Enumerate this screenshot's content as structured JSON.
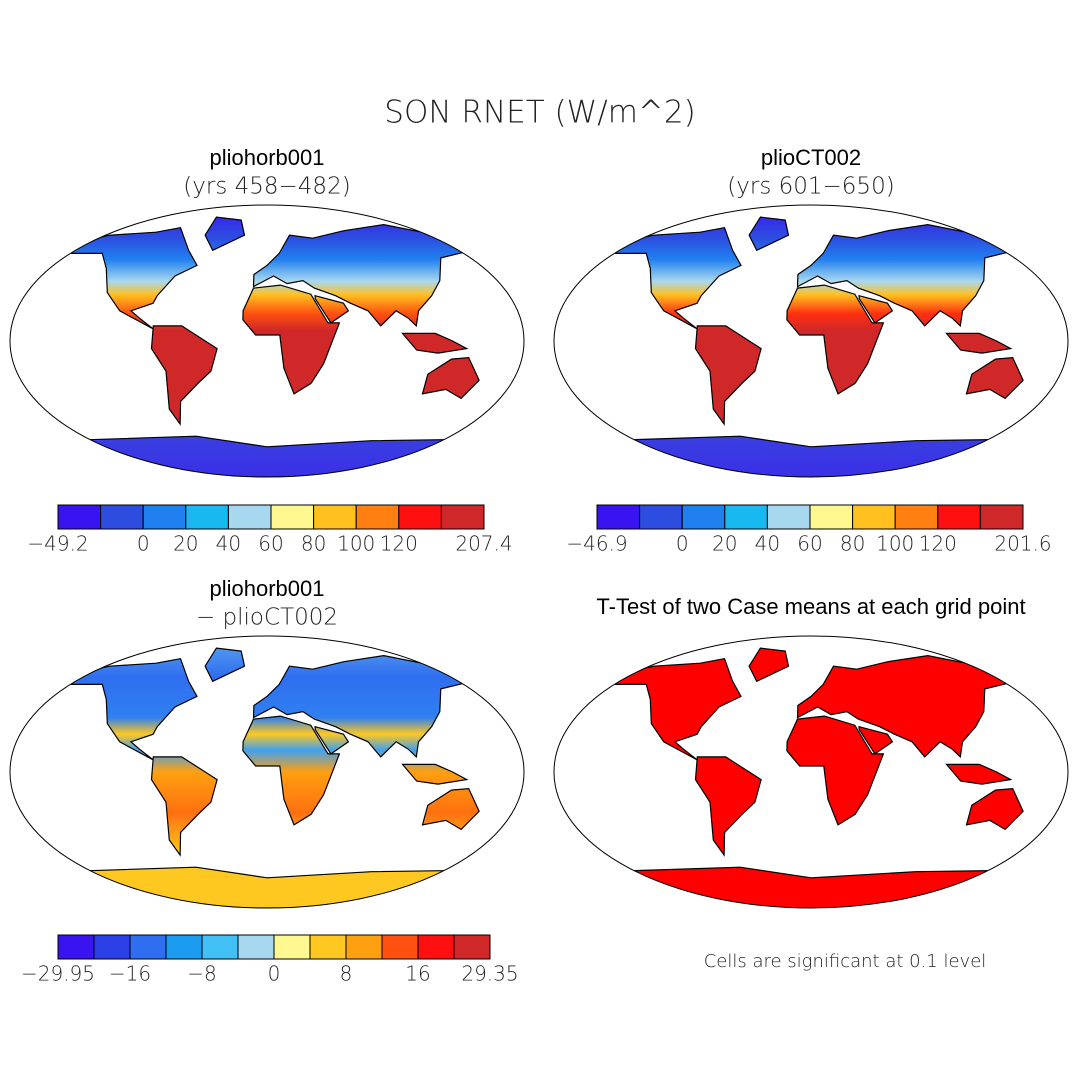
{
  "title": "SON RNET (W/m^2)",
  "panels": [
    {
      "title": "pliohorb001",
      "subtitle": "(yrs 458−482)"
    },
    {
      "title": "plioCT002",
      "subtitle": "(yrs 601−650)"
    },
    {
      "title": "pliohorb001",
      "subtitle": "− plioCT002"
    },
    {
      "title": "T-Test of two Case means at each grid point"
    }
  ],
  "colorbars": [
    {
      "colors": [
        "#3a14f0",
        "#2d4de0",
        "#2080f0",
        "#18b8f0",
        "#a8d8f0",
        "#fff890",
        "#ffc020",
        "#ff8010",
        "#ff1010",
        "#d02828"
      ],
      "labels": [
        "−49.2",
        null,
        "0",
        "20",
        "40",
        "60",
        "80",
        "100",
        "120",
        null,
        "207.4"
      ]
    },
    {
      "colors": [
        "#3a14f0",
        "#2d4de0",
        "#2080f0",
        "#18b8f0",
        "#a8d8f0",
        "#fff890",
        "#ffc020",
        "#ff8010",
        "#ff1010",
        "#d02828"
      ],
      "labels": [
        "−46.9",
        null,
        "0",
        "20",
        "40",
        "60",
        "80",
        "100",
        "120",
        null,
        "201.6"
      ]
    },
    {
      "colors": [
        "#3a14f0",
        "#2c40e8",
        "#2f6ef0",
        "#1a9cf0",
        "#40c0f5",
        "#a8d8f0",
        "#fff890",
        "#ffc820",
        "#ffa010",
        "#ff5010",
        "#ff1010",
        "#d02828"
      ],
      "labels": [
        "−29.95",
        null,
        "−16",
        null,
        "−8",
        null,
        "0",
        null,
        "8",
        null,
        "16",
        null,
        "29.35"
      ]
    }
  ],
  "note": "Cells are significant at 0.1 level"
}
